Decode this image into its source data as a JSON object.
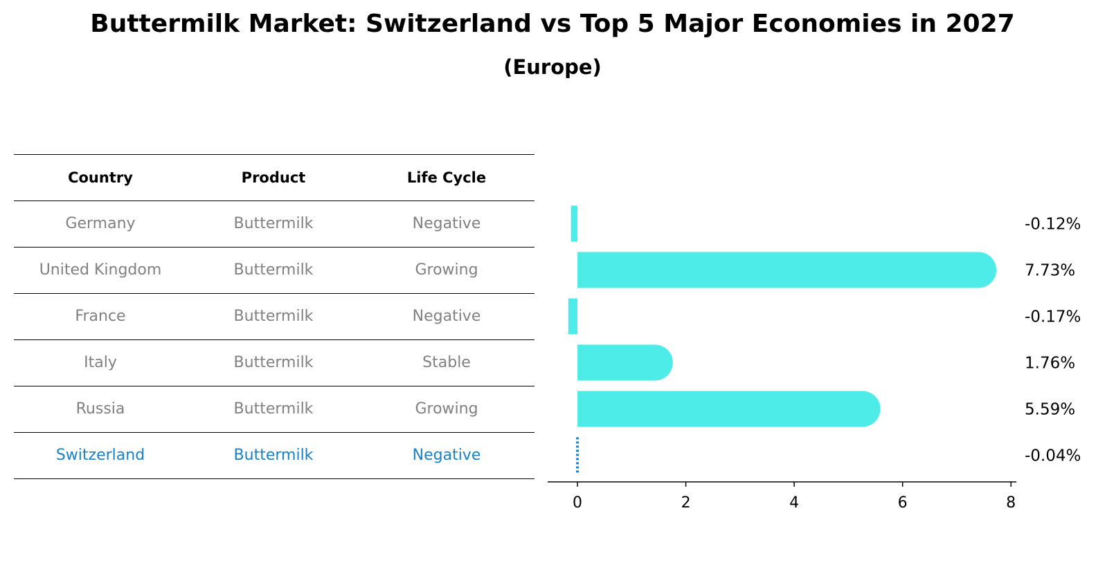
{
  "chart_data": {
    "type": "bar",
    "orientation": "horizontal",
    "title": "Buttermilk Market: Switzerland vs Top 5 Major Economies in 2027",
    "subtitle": "(Europe)",
    "categories": [
      "Germany",
      "United Kingdom",
      "France",
      "Italy",
      "Russia",
      "Switzerland"
    ],
    "values": [
      -0.12,
      7.73,
      -0.17,
      1.76,
      5.59,
      -0.04
    ],
    "value_labels": [
      "-0.12%",
      "7.73%",
      "-0.17%",
      "1.76%",
      "5.59%",
      "-0.04%"
    ],
    "x_ticks": [
      0,
      2,
      4,
      6,
      8
    ],
    "xlim": [
      -0.55,
      8.1
    ],
    "bar_color": "#4eece9",
    "highlight_color": "#1a80c8",
    "highlight_category": "Switzerland",
    "table": {
      "headers": [
        "Country",
        "Product",
        "Life Cycle"
      ],
      "rows": [
        [
          "Germany",
          "Buttermilk",
          "Negative"
        ],
        [
          "United Kingdom",
          "Buttermilk",
          "Growing"
        ],
        [
          "France",
          "Buttermilk",
          "Negative"
        ],
        [
          "Italy",
          "Buttermilk",
          "Stable"
        ],
        [
          "Russia",
          "Buttermilk",
          "Growing"
        ],
        [
          "Switzerland",
          "Buttermilk",
          "Negative"
        ]
      ]
    }
  }
}
